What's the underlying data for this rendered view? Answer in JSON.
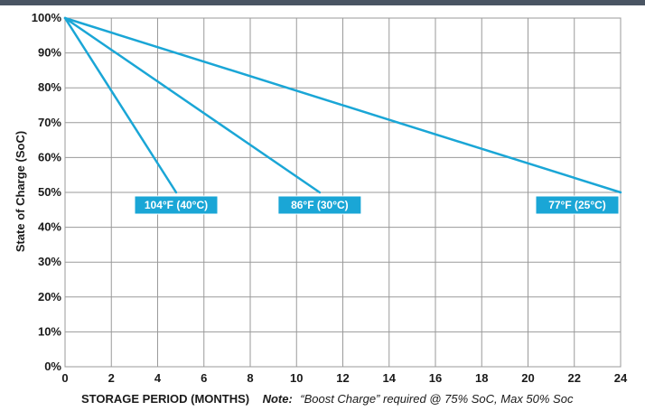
{
  "chart_data": {
    "type": "line",
    "xlabel": "STORAGE PERIOD (MONTHS)",
    "ylabel": "State of Charge (SoC)",
    "note_label": "Note:",
    "note_text": "“Boost Charge” required @ 75% SoC, Max 50% Soc",
    "xlim": [
      0,
      24
    ],
    "ylim": [
      0,
      100
    ],
    "x_ticks": [
      "0",
      "2",
      "4",
      "6",
      "8",
      "10",
      "12",
      "14",
      "16",
      "18",
      "20",
      "22",
      "24"
    ],
    "y_ticks": [
      "0%",
      "10%",
      "20%",
      "30%",
      "40%",
      "50%",
      "60%",
      "70%",
      "80%",
      "90%",
      "100%"
    ],
    "grid": true,
    "line_color": "#1aa6d6",
    "series": [
      {
        "name": "104°F (40°C)",
        "x": [
          0,
          4.8
        ],
        "y": [
          100,
          50
        ]
      },
      {
        "name": "86°F (30°C)",
        "x": [
          0,
          11
        ],
        "y": [
          100,
          50
        ]
      },
      {
        "name": "77°F (25°C)",
        "x": [
          0,
          24
        ],
        "y": [
          100,
          50
        ]
      }
    ]
  }
}
